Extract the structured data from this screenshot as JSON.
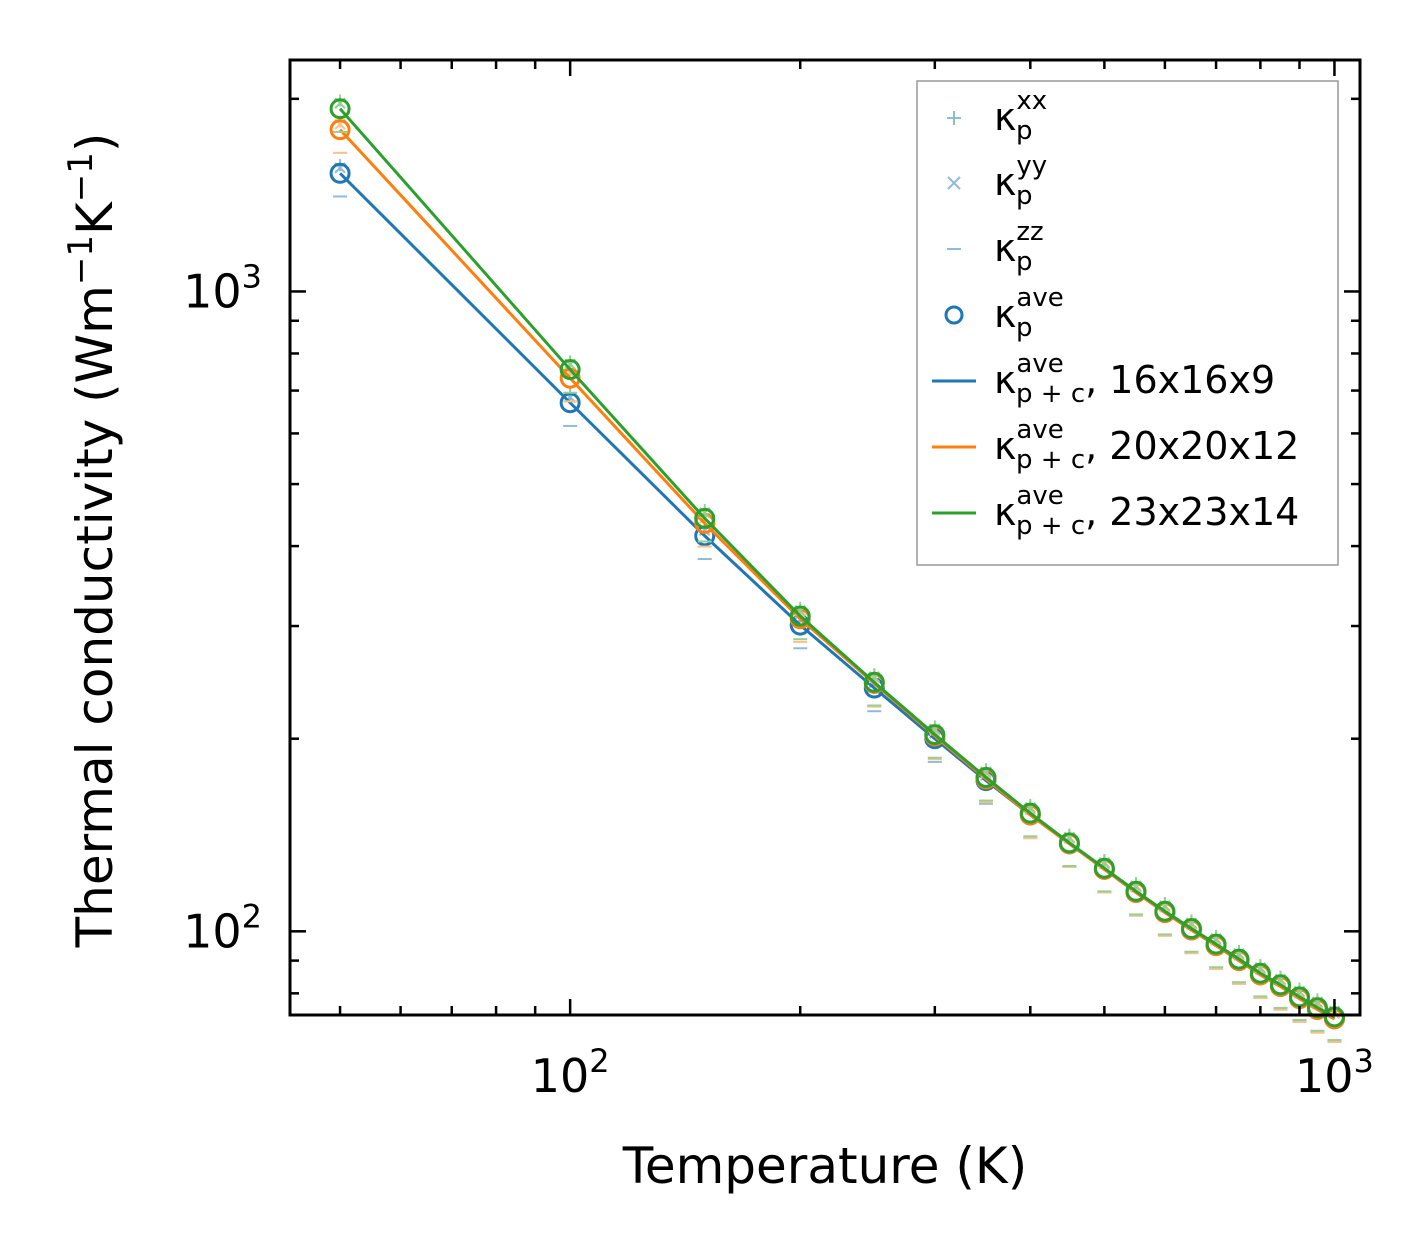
{
  "chart_data": {
    "type": "line",
    "xscale": "log",
    "yscale": "log",
    "xlabel": "Temperature (K)",
    "ylabel": "Thermal conductivity (Wm",
    "ylabel_sup1": "−1",
    "ylabel_mid": "K",
    "ylabel_sup2": "−1",
    "ylabel_end": ")",
    "xlim": [
      43,
      1080
    ],
    "ylim": [
      74,
      2300
    ],
    "x_ticks": [
      {
        "base": "10",
        "exp": "2",
        "value": 100
      },
      {
        "base": "10",
        "exp": "3",
        "value": 1000
      }
    ],
    "y_ticks": [
      {
        "base": "10",
        "exp": "2",
        "value": 100
      },
      {
        "base": "10",
        "exp": "3",
        "value": 1000
      }
    ],
    "x": [
      50,
      100,
      150,
      200,
      250,
      300,
      350,
      400,
      450,
      500,
      550,
      600,
      650,
      700,
      750,
      800,
      850,
      900,
      950,
      1000
    ],
    "series": [
      {
        "name": "16x16x9",
        "color": "#1f77b4",
        "values": [
          1530,
          670,
          415,
          301,
          240,
          200,
          172,
          152,
          137,
          125,
          115,
          107,
          100.5,
          95,
          90,
          85.5,
          82,
          78.5,
          75.5,
          73
        ]
      },
      {
        "name": "20x20x12",
        "color": "#ff7f0e",
        "values": [
          1790,
          732,
          434,
          308,
          244,
          202,
          173,
          152,
          137,
          125,
          115,
          107,
          100.5,
          95,
          90,
          85.5,
          82,
          78.5,
          75.5,
          73
        ]
      },
      {
        "name": "23x23x14",
        "color": "#2ca02c",
        "values": [
          1930,
          755,
          442,
          311,
          245,
          203,
          174,
          153,
          137.5,
          125.5,
          115.5,
          107.5,
          101,
          95.5,
          90.5,
          86,
          82.5,
          79,
          76,
          73.5
        ]
      }
    ],
    "component_offsets": {
      "xx": 1.03,
      "yy": 1.02,
      "zz": 0.92
    },
    "legend": {
      "placement": "top-right",
      "entries": [
        {
          "kind": "plus",
          "symbol": "κ",
          "sub": "p",
          "sup": "xx",
          "suffix": ""
        },
        {
          "kind": "cross",
          "symbol": "κ",
          "sub": "p",
          "sup": "yy",
          "suffix": ""
        },
        {
          "kind": "dash",
          "symbol": "κ",
          "sub": "p",
          "sup": "zz",
          "suffix": ""
        },
        {
          "kind": "circle",
          "symbol": "κ",
          "sub": "p",
          "sup": "ave",
          "suffix": ""
        },
        {
          "kind": "line",
          "color": "#1f77b4",
          "symbol": "κ",
          "sub": "p + c",
          "sup": "ave",
          "suffix": ", 16x16x9"
        },
        {
          "kind": "line",
          "color": "#ff7f0e",
          "symbol": "κ",
          "sub": "p + c",
          "sup": "ave",
          "suffix": ", 20x20x12"
        },
        {
          "kind": "line",
          "color": "#2ca02c",
          "symbol": "κ",
          "sub": "p + c",
          "sup": "ave",
          "suffix": ", 23x23x14"
        }
      ]
    }
  }
}
